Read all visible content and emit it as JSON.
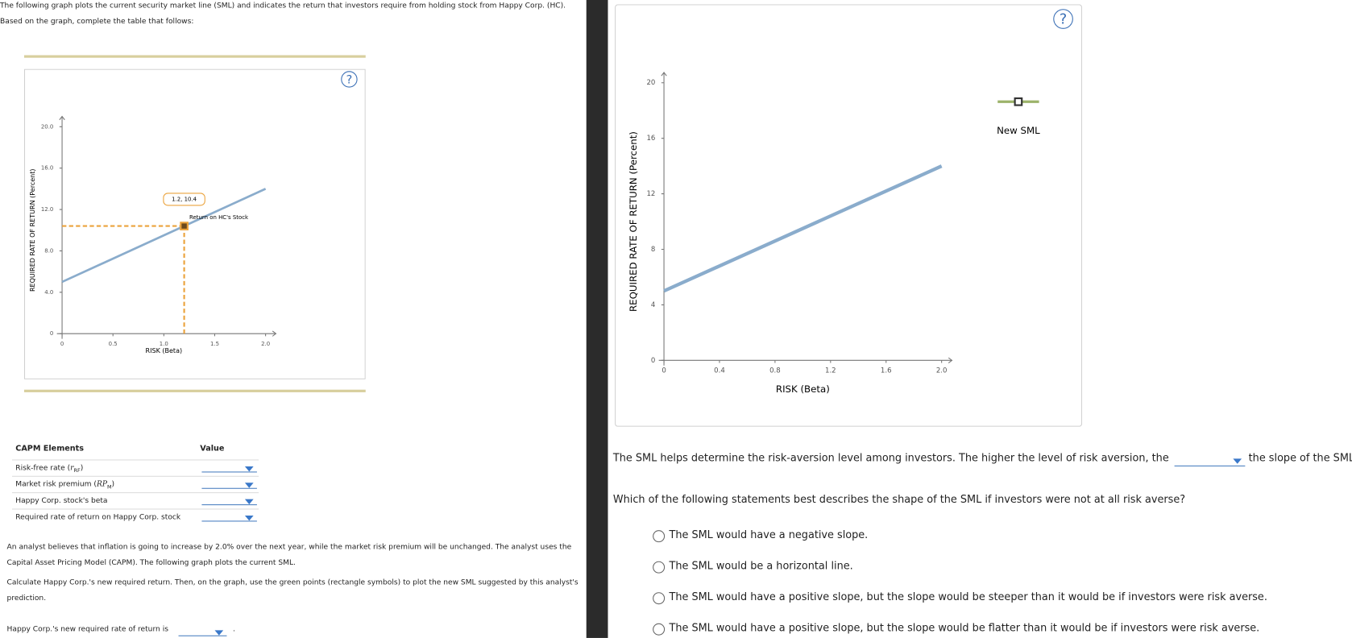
{
  "intro": "The following graph plots the current security market line (SML) and indicates the return that investors require from holding stock from Happy Corp. (HC). Based on the graph, complete the table that follows:",
  "chart_data": [
    {
      "type": "line",
      "x_label": "RISK (Beta)",
      "y_label": "REQUIRED RATE OF RETURN (Percent)",
      "x": [
        0,
        2
      ],
      "series": [
        {
          "color": "#8aaccc",
          "values": [
            5,
            14
          ]
        }
      ],
      "xlim": [
        0,
        2
      ],
      "ylim": [
        0,
        20
      ],
      "xticks": [
        0,
        0.5,
        {
          "value": 1,
          "label": "1.0"
        },
        1.5,
        {
          "value": 2,
          "label": "2.0"
        }
      ],
      "yticks": [
        0,
        {
          "value": 4,
          "label": "4.0"
        },
        {
          "value": 8,
          "label": "8.0"
        },
        {
          "value": 12,
          "label": "12.0"
        },
        {
          "value": 16,
          "label": "16.0"
        },
        {
          "value": 20,
          "label": "20.0"
        }
      ],
      "point": {
        "x": 1.2,
        "y": 10.4,
        "label": "1.2, 10.4",
        "name": "Return on HC's Stock",
        "color": "#eba33c"
      }
    },
    {
      "type": "line",
      "x_label": "RISK (Beta)",
      "y_label": "REQUIRED RATE OF RETURN (Percent)",
      "x": [
        0,
        2
      ],
      "series": [
        {
          "color": "#8aaccc",
          "values": [
            5,
            14
          ]
        }
      ],
      "xlim": [
        0,
        2
      ],
      "ylim": [
        0,
        20
      ],
      "xticks": [
        0,
        0.4,
        0.8,
        1.2,
        1.6,
        {
          "value": 2,
          "label": "2.0"
        }
      ],
      "yticks": [
        0,
        4,
        8,
        12,
        16,
        20
      ],
      "legend": [
        {
          "name": "New SML",
          "color": "#9cb36a"
        }
      ]
    }
  ],
  "table": {
    "header": [
      "CAPM Elements",
      "Value"
    ],
    "rows": [
      {
        "label": "Risk-free rate",
        "symbol": "r",
        "subscript": "RF"
      },
      {
        "label": "Market risk premium",
        "symbol": "RP",
        "subscript": "M"
      },
      {
        "label": "Happy Corp. stock's beta"
      },
      {
        "label": "Required rate of return on Happy Corp. stock"
      }
    ]
  },
  "analyst_text": [
    "An analyst believes that inflation is going to increase by 2.0% over the next year, while the market risk premium will be unchanged. The analyst uses the Capital Asset Pricing Model (CAPM). The following graph plots the current SML.",
    "Calculate Happy Corp.'s new required return. Then, on the graph, use the green points (rectangle symbols) to plot the new SML suggested by this analyst's prediction."
  ],
  "new_return_prompt": "Happy Corp.'s new required rate of return is",
  "new_return_suffix": ".",
  "sml_statement": {
    "before": "The SML helps determine the risk-aversion level among investors. The higher the level of risk aversion, the",
    "after": "the slope of the SML"
  },
  "question": "Which of the following statements best describes the shape of the SML if investors were not at all risk averse?",
  "options": [
    "The SML would have a negative slope.",
    "The SML would be a horizontal line.",
    "The SML would have a positive slope, but the slope would be steeper than it would be if investors were risk averse.",
    "The SML would have a positive slope, but the slope would be flatter than it would be if investors were risk averse."
  ]
}
